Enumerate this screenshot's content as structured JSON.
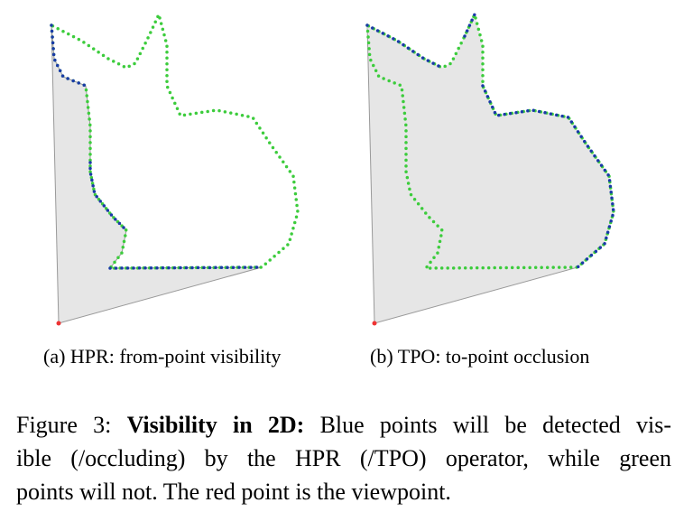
{
  "figure": {
    "subfigures": [
      {
        "caption": "(a) HPR: from-point visibility"
      },
      {
        "caption": "(b) TPO: to-point occlusion"
      }
    ],
    "caption": {
      "label": "Figure 3:",
      "heading": "Visibility in 2D:",
      "lines": [
        "Blue points will be detected vis-",
        "ible (/occluding) by the HPR (/TPO) operator, while green",
        "points will not. The red point is the viewpoint."
      ]
    }
  }
}
